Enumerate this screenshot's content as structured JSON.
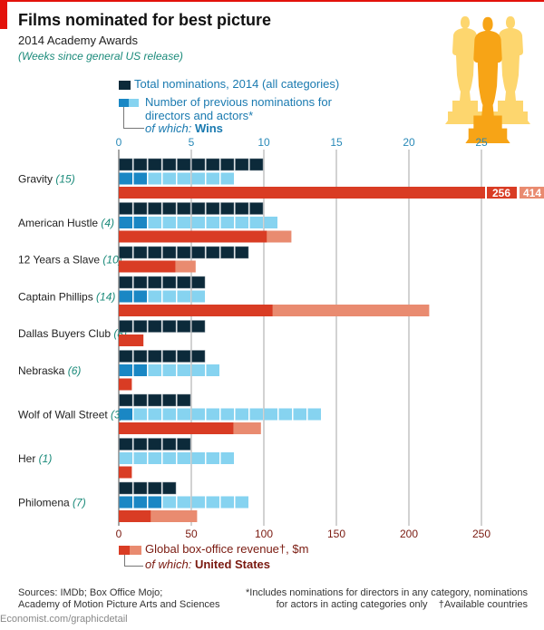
{
  "header": {
    "title": "Films nominated for best picture",
    "subtitle": "2014 Academy Awards",
    "note": "(Weeks since general US release)"
  },
  "legend": {
    "total": "Total nominations, 2014",
    "total_suffix": "(all categories)",
    "previous_line1": "Number of previous nominations for",
    "previous_line2": "directors and actors*",
    "of_which": "of which:",
    "wins": "Wins",
    "revenue": "Global box-office revenue†, $m",
    "us": "United States"
  },
  "footer": {
    "sources_line1": "Sources: IMDb; Box Office Mojo;",
    "sources_line2": "Academy of Motion Picture Arts and Sciences",
    "footnote_line1": "*Includes nominations for directors in any category, nominations",
    "footnote_line2": "for actors in acting categories only",
    "footnote_dagger": "†Available countries",
    "credit": "Economist.com/graphicdetail"
  },
  "colors": {
    "total": "#0c2a3a",
    "wins": "#1a87c4",
    "previous": "#86d3f0",
    "us": "#d93c24",
    "global": "#e98b70",
    "accent": "#e3120b",
    "weeks": "#1a8a7a",
    "top_axis": "#2a8ab8",
    "bottom_axis": "#7a1a10",
    "oscar_light": "#fdd66e",
    "oscar_dark": "#f7a416"
  },
  "chart_data": {
    "type": "bar",
    "top_axis": {
      "label": "nominations",
      "ticks": [
        "0",
        "5",
        "10",
        "15",
        "20",
        "25"
      ],
      "range": [
        0,
        28
      ]
    },
    "bottom_axis": {
      "label": "$m",
      "ticks": [
        "0",
        "50",
        "100",
        "150",
        "200",
        "250"
      ],
      "range": [
        0,
        280
      ]
    },
    "grid": true,
    "films": [
      {
        "name": "Gravity",
        "weeks": "(15)",
        "total": 10,
        "previous": 8,
        "wins": 2,
        "us": 256,
        "global": 414,
        "us_label": "256",
        "global_label": "414",
        "truncated": true
      },
      {
        "name": "American Hustle",
        "weeks": "(4)",
        "total": 10,
        "previous": 11,
        "wins": 2,
        "us": 102,
        "global": 119
      },
      {
        "name": "12 Years a Slave",
        "weeks": "(10)",
        "total": 9,
        "previous": 0,
        "wins": 0,
        "us": 39,
        "global": 53
      },
      {
        "name": "Captain Phillips",
        "weeks": "(14)",
        "total": 6,
        "previous": 6,
        "wins": 2,
        "us": 106,
        "global": 214
      },
      {
        "name": "Dallas Buyers Club",
        "weeks": "(8)",
        "total": 6,
        "previous": 0,
        "wins": 0,
        "us": 17,
        "global": null
      },
      {
        "name": "Nebraska",
        "weeks": "(6)",
        "total": 6,
        "previous": 7,
        "wins": 2,
        "us": 9,
        "global": null
      },
      {
        "name": "Wolf of Wall Street",
        "weeks": "(3)",
        "total": 5,
        "previous": 14,
        "wins": 1,
        "us": 79,
        "global": 98
      },
      {
        "name": "Her",
        "weeks": "(1)",
        "total": 5,
        "previous": 8,
        "wins": 0,
        "us": 9,
        "global": null
      },
      {
        "name": "Philomena",
        "weeks": "(7)",
        "total": 4,
        "previous": 9,
        "wins": 3,
        "us": 22,
        "global": 54
      }
    ]
  }
}
